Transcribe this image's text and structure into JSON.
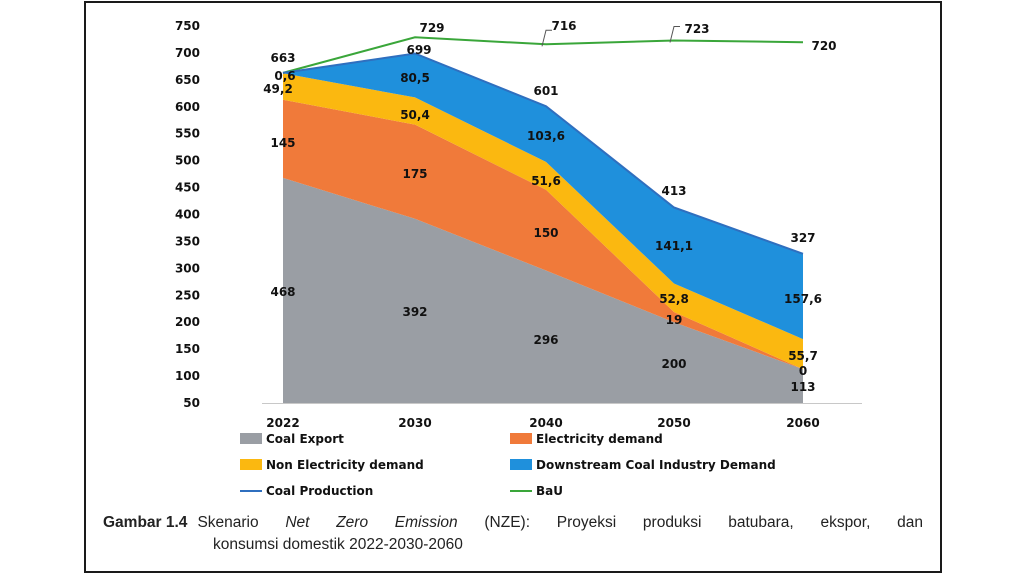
{
  "chart_data": {
    "type": "area",
    "x": [
      "2022",
      "2030",
      "2040",
      "2050",
      "2060"
    ],
    "y_ticks": [
      50,
      100,
      150,
      200,
      250,
      300,
      350,
      400,
      450,
      500,
      550,
      600,
      650,
      700,
      750
    ],
    "ylim": [
      50,
      750
    ],
    "grid": false,
    "legend_position": "bottom",
    "stacked_series": [
      {
        "name": "Coal Export",
        "color": "#9a9ea4",
        "values": [
          468,
          392,
          296,
          200,
          113
        ],
        "labels": [
          "468",
          "392",
          "296",
          "200",
          "113"
        ]
      },
      {
        "name": "Electricity demand",
        "color": "#f07a3a",
        "values": [
          145,
          175,
          150,
          19,
          0
        ],
        "labels": [
          "145",
          "175",
          "150",
          "19",
          "0"
        ]
      },
      {
        "name": "Non Electricity demand",
        "color": "#fbb810",
        "values": [
          49.2,
          50.4,
          51.6,
          52.8,
          55.7
        ],
        "labels": [
          "49,2",
          "50,4",
          "51,6",
          "52,8",
          "55,7"
        ]
      },
      {
        "name": "Downstream Coal Industry Demand",
        "color": "#1f90dc",
        "values": [
          0.6,
          80.5,
          103.6,
          141.1,
          157.6
        ],
        "labels": [
          "0,6",
          "80,5",
          "103,6",
          "141,1",
          "157,6"
        ]
      }
    ],
    "lines": [
      {
        "name": "Coal Production",
        "color": "#2f6fbf",
        "values": [
          663,
          699,
          601,
          413,
          327
        ],
        "labels": [
          "663",
          "699",
          "601",
          "413",
          "327"
        ]
      },
      {
        "name": "BaU",
        "color": "#3aa63a",
        "values": [
          663,
          729,
          716,
          723,
          720
        ],
        "labels": [
          "",
          "729",
          "716",
          "723",
          "720"
        ]
      }
    ],
    "legend": [
      {
        "label": "Coal Export",
        "color": "#9a9ea4",
        "kind": "box"
      },
      {
        "label": "Electricity demand",
        "color": "#f07a3a",
        "kind": "box"
      },
      {
        "label": "Non Electricity demand",
        "color": "#fbb810",
        "kind": "box"
      },
      {
        "label": "Downstream  Coal Industry  Demand",
        "color": "#1f90dc",
        "kind": "box"
      },
      {
        "label": "Coal Production",
        "color": "#2f6fbf",
        "kind": "line"
      },
      {
        "label": "BaU",
        "color": "#3aa63a",
        "kind": "line"
      }
    ]
  },
  "caption": {
    "label": "Gambar 1.4",
    "part1": "Skenario ",
    "italic": "Net Zero Emission",
    "part2": " (NZE): Proyeksi produksi batubara, ekspor, dan",
    "line2": "konsumsi domestik 2022-2030-2060"
  }
}
